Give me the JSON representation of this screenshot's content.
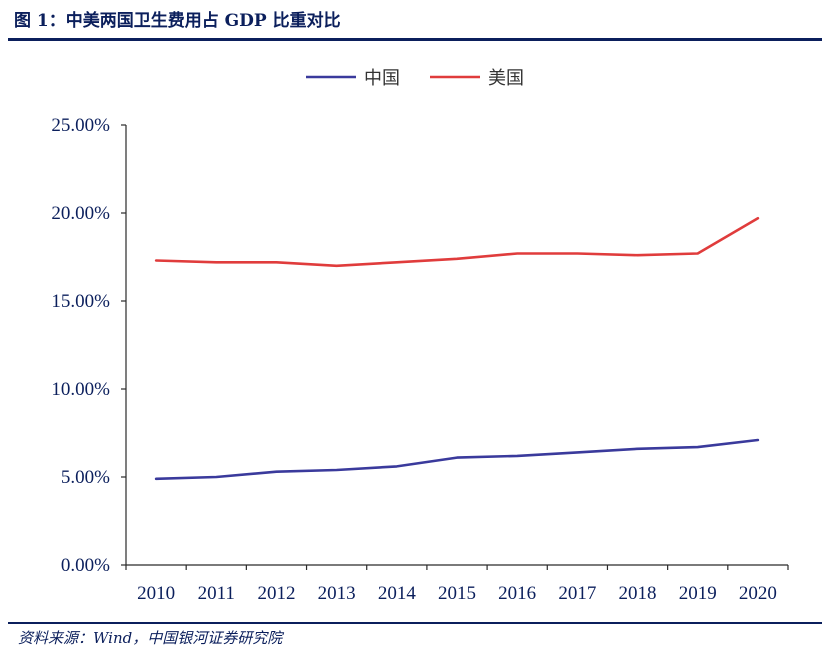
{
  "figure": {
    "title": "图 1：中美两国卫生费用占 GDP 比重对比",
    "source": "资料来源：Wind，中国银河证券研究院"
  },
  "chart_data": {
    "type": "line",
    "title": "",
    "xlabel": "",
    "ylabel": "",
    "categories": [
      "2010",
      "2011",
      "2012",
      "2013",
      "2014",
      "2015",
      "2016",
      "2017",
      "2018",
      "2019",
      "2020"
    ],
    "ylim": [
      0,
      25
    ],
    "yticks": [
      "0.00%",
      "5.00%",
      "10.00%",
      "15.00%",
      "20.00%",
      "25.00%"
    ],
    "grid": false,
    "legend_position": "top-center",
    "series": [
      {
        "name": "中国",
        "color": "#3a3a9c",
        "values": [
          4.9,
          5.0,
          5.3,
          5.4,
          5.6,
          6.1,
          6.2,
          6.4,
          6.6,
          6.7,
          7.1
        ]
      },
      {
        "name": "美国",
        "color": "#e03c3c",
        "values": [
          17.3,
          17.2,
          17.2,
          17.0,
          17.2,
          17.4,
          17.7,
          17.7,
          17.6,
          17.7,
          19.7
        ]
      }
    ],
    "axis_color": "#2a2a2a"
  }
}
